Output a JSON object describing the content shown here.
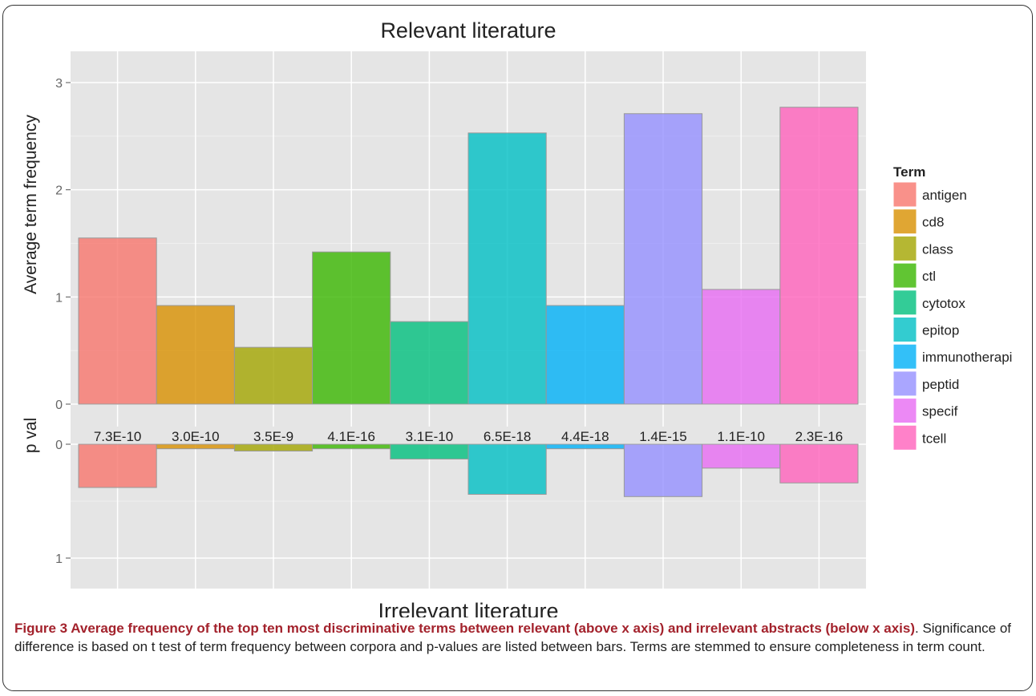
{
  "chart_data": {
    "type": "bar",
    "title": "Relevant literature",
    "bottom_title": "Irrelevant literature",
    "ylabel_top": "Average term frequency",
    "ylabel_bottom": "p val",
    "categories": [
      "antigen",
      "cd8",
      "class",
      "ctl",
      "cytotox",
      "epitop",
      "immunotherapi",
      "peptid",
      "specif",
      "tcell"
    ],
    "relevant_values": [
      1.55,
      0.92,
      0.53,
      1.42,
      0.77,
      2.53,
      0.92,
      2.71,
      1.07,
      2.77
    ],
    "irrelevant_values": [
      0.38,
      0.04,
      0.06,
      0.04,
      0.13,
      0.44,
      0.04,
      0.46,
      0.21,
      0.34
    ],
    "p_values": [
      "7.3E-10",
      "3.0E-10",
      "3.5E-9",
      "4.1E-16",
      "3.1E-10",
      "6.5E-18",
      "4.4E-18",
      "1.4E-15",
      "1.1E-10",
      "2.3E-16"
    ],
    "colors": [
      "#F8766D",
      "#D89000",
      "#A3A500",
      "#39B600",
      "#00BF7D",
      "#00BFC4",
      "#00B0F6",
      "#9590FF",
      "#E76BF3",
      "#FF62BC"
    ],
    "ylim_top": [
      0,
      3.2
    ],
    "ylim_bottom": [
      0,
      1.25
    ],
    "yticks_top": [
      "0",
      "1",
      "2",
      "3"
    ],
    "yticks_bottom": [
      "0",
      "1"
    ],
    "grid": true,
    "legend": {
      "title": "Term",
      "position": "right"
    }
  },
  "caption": {
    "bold": "Figure 3 Average frequency of the top ten most discriminative terms between relevant (above x axis) and irrelevant abstracts (below x axis)",
    "rest": ". Significance of difference is based on t test of term frequency between corpora and p-values are listed between bars. Terms are stemmed to ensure completeness in term count."
  }
}
